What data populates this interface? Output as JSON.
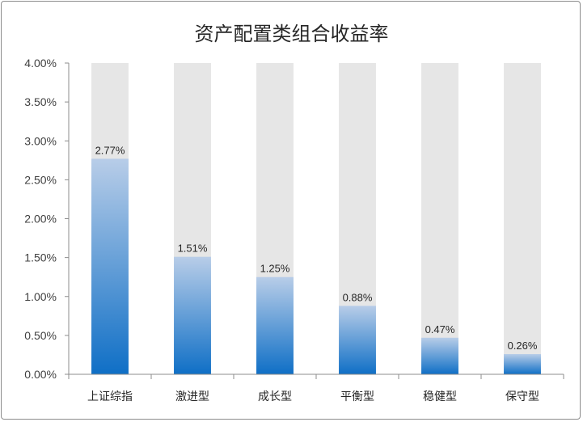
{
  "chart_data": {
    "type": "bar",
    "title": "资产配置类组合收益率",
    "xlabel": "",
    "ylabel": "",
    "categories": [
      "上证综指",
      "激进型",
      "成长型",
      "平衡型",
      "稳健型",
      "保守型"
    ],
    "values": [
      2.77,
      1.51,
      1.25,
      0.88,
      0.47,
      0.26
    ],
    "value_labels": [
      "2.77%",
      "1.51%",
      "1.25%",
      "0.88%",
      "0.47%",
      "0.26%"
    ],
    "ylim": [
      0,
      4.0
    ],
    "yticks": [
      "0.00%",
      "0.50%",
      "1.00%",
      "1.50%",
      "2.00%",
      "2.50%",
      "3.00%",
      "3.50%",
      "4.00%"
    ],
    "background_bar_value": 4.0,
    "grid": false,
    "legend": "none",
    "colors": {
      "bar_bottom": "#0f6fc6",
      "bar_top": "#b8cde8",
      "background_bar": "#e6e6e6",
      "axis": "#8c8c8c"
    }
  }
}
